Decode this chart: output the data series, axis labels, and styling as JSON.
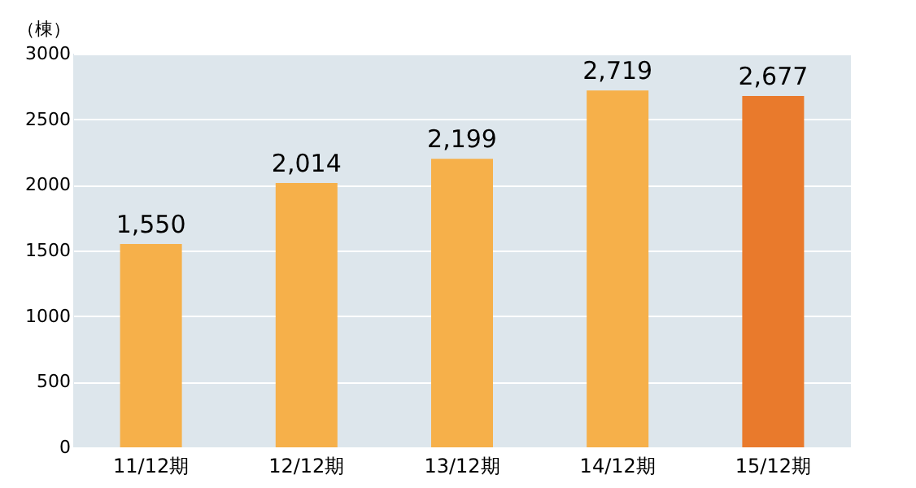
{
  "chart_data": {
    "type": "bar",
    "ylabel": "（棟）",
    "categories": [
      "11/12期",
      "12/12期",
      "13/12期",
      "14/12期",
      "15/12期"
    ],
    "values": [
      1550,
      2014,
      2199,
      2719,
      2677
    ],
    "colors": [
      "#f6b04a",
      "#f6b04a",
      "#f6b04a",
      "#f6b04a",
      "#e97a2c"
    ],
    "value_labels": [
      "1,550",
      "2,014",
      "2,199",
      "2,719",
      "2,677"
    ],
    "ylim": [
      0,
      3000
    ],
    "yticks": [
      0,
      500,
      1000,
      1500,
      2000,
      2500,
      3000
    ],
    "grid": "y"
  }
}
